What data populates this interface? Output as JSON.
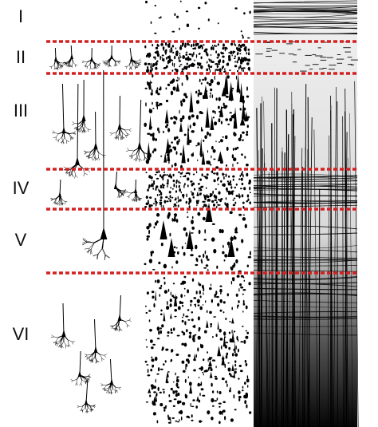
{
  "layers": [
    "I",
    "II",
    "III",
    "IV",
    "V",
    "VI"
  ]
}
